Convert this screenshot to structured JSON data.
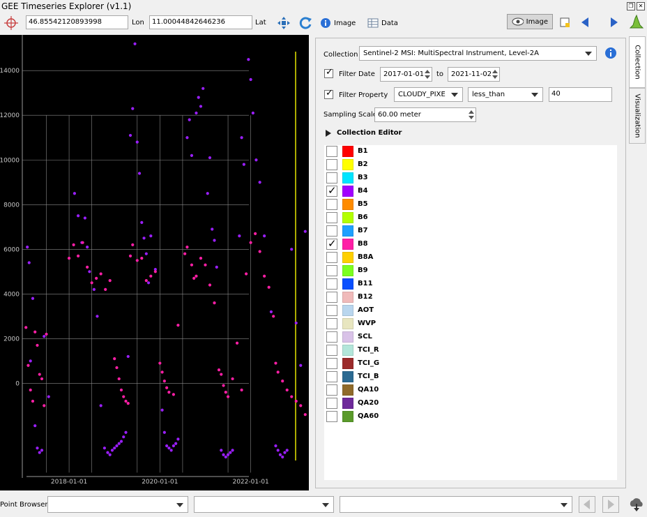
{
  "window": {
    "title": "GEE Timeseries Explorer (v1.1)"
  },
  "toolbar": {
    "lon_value": "46.85542120893998",
    "lon_label": "Lon",
    "lat_value": "11.00044842646236",
    "lat_label": "Lat",
    "image_label": "Image",
    "data_label": "Data",
    "view_image_label": "Image"
  },
  "panel": {
    "collection_label": "Collection",
    "collection_value": "Sentinel-2 MSI: MultiSpectral Instrument, Level-2A",
    "filter_date_label": "Filter Date",
    "date_from": "2017-01-01",
    "to_label": "to",
    "date_to": "2021-11-02",
    "filter_property_label": "Filter Property",
    "property_value": "CLOUDY_PIXE",
    "operator_value": "less_than",
    "threshold_value": "40",
    "sampling_scale_label": "Sampling Scale",
    "sampling_scale_value": "60.00 meter",
    "collection_editor_label": "Collection Editor"
  },
  "bands": [
    {
      "name": "B1",
      "color": "#ff0000",
      "checked": false
    },
    {
      "name": "B2",
      "color": "#ffff00",
      "checked": false
    },
    {
      "name": "B3",
      "color": "#00e5ff",
      "checked": false
    },
    {
      "name": "B4",
      "color": "#a100ff",
      "checked": true
    },
    {
      "name": "B5",
      "color": "#ff8c00",
      "checked": false
    },
    {
      "name": "B6",
      "color": "#b3ff00",
      "checked": false
    },
    {
      "name": "B7",
      "color": "#1fa0ff",
      "checked": false
    },
    {
      "name": "B8",
      "color": "#ff1fa6",
      "checked": true
    },
    {
      "name": "B8A",
      "color": "#ffd000",
      "checked": false
    },
    {
      "name": "B9",
      "color": "#7cff1f",
      "checked": false
    },
    {
      "name": "B11",
      "color": "#0a4fff",
      "checked": false
    },
    {
      "name": "B12",
      "color": "#f0baba",
      "checked": false
    },
    {
      "name": "AOT",
      "color": "#b9d6ee",
      "checked": false
    },
    {
      "name": "WVP",
      "color": "#e8e6c0",
      "checked": false
    },
    {
      "name": "SCL",
      "color": "#d9c2e8",
      "checked": false
    },
    {
      "name": "TCI_R",
      "color": "#b3e6da",
      "checked": false
    },
    {
      "name": "TCI_G",
      "color": "#9b2a2a",
      "checked": false
    },
    {
      "name": "TCI_B",
      "color": "#2b6a92",
      "checked": false
    },
    {
      "name": "QA10",
      "color": "#8f6a2a",
      "checked": false
    },
    {
      "name": "QA20",
      "color": "#6e2a9a",
      "checked": false
    },
    {
      "name": "QA60",
      "color": "#5a9a2a",
      "checked": false
    }
  ],
  "side_tabs": [
    "Collection",
    "Visualization"
  ],
  "bottom": {
    "point_browser_label": "Point Browser"
  },
  "chart_data": {
    "type": "scatter",
    "ylim": [
      -4800,
      15600
    ],
    "yticks": [
      "14000",
      "12000",
      "10000",
      "8000",
      "6000",
      "4000",
      "2000",
      "0"
    ],
    "ytick_values": [
      14000,
      12000,
      10000,
      8000,
      6000,
      4000,
      2000,
      0
    ],
    "xticks": [
      "2018-01-01",
      "2020-01-01",
      "2022-01-01"
    ],
    "xtick_values": [
      2018.0,
      2020.0,
      2022.0
    ],
    "xlim": [
      2016.97,
      2023.28
    ],
    "grid": true,
    "series": [
      {
        "name": "B4",
        "color": "#9b1fff",
        "points": [
          [
            2017.08,
            6100
          ],
          [
            2017.12,
            5400
          ],
          [
            2017.15,
            1000
          ],
          [
            2017.2,
            3800
          ],
          [
            2017.25,
            -1900
          ],
          [
            2017.3,
            -2900
          ],
          [
            2017.35,
            -3100
          ],
          [
            2017.4,
            -3000
          ],
          [
            2017.45,
            2100
          ],
          [
            2017.55,
            -600
          ],
          [
            2018.12,
            8500
          ],
          [
            2018.2,
            7500
          ],
          [
            2018.28,
            6300
          ],
          [
            2018.35,
            7400
          ],
          [
            2018.4,
            6100
          ],
          [
            2018.45,
            5000
          ],
          [
            2018.55,
            4200
          ],
          [
            2018.62,
            3000
          ],
          [
            2018.7,
            -1000
          ],
          [
            2018.78,
            -2900
          ],
          [
            2018.85,
            -3100
          ],
          [
            2018.9,
            -3200
          ],
          [
            2018.95,
            -3000
          ],
          [
            2019.0,
            -2900
          ],
          [
            2019.05,
            -2800
          ],
          [
            2019.1,
            -2700
          ],
          [
            2019.15,
            -2600
          ],
          [
            2019.2,
            -2400
          ],
          [
            2019.25,
            -2200
          ],
          [
            2019.3,
            1200
          ],
          [
            2019.35,
            11100
          ],
          [
            2019.4,
            12300
          ],
          [
            2019.45,
            15200
          ],
          [
            2019.5,
            10800
          ],
          [
            2019.55,
            9400
          ],
          [
            2019.6,
            7200
          ],
          [
            2019.65,
            6500
          ],
          [
            2019.7,
            5800
          ],
          [
            2019.75,
            4500
          ],
          [
            2019.8,
            6600
          ],
          [
            2019.9,
            5100
          ],
          [
            2020.05,
            -1200
          ],
          [
            2020.1,
            -2200
          ],
          [
            2020.15,
            -2800
          ],
          [
            2020.2,
            -2900
          ],
          [
            2020.25,
            -3000
          ],
          [
            2020.3,
            -2800
          ],
          [
            2020.35,
            -2700
          ],
          [
            2020.4,
            -2500
          ],
          [
            2020.6,
            11000
          ],
          [
            2020.65,
            11800
          ],
          [
            2020.7,
            10200
          ],
          [
            2020.8,
            12100
          ],
          [
            2020.85,
            12800
          ],
          [
            2020.9,
            12400
          ],
          [
            2020.95,
            13200
          ],
          [
            2021.05,
            8500
          ],
          [
            2021.1,
            10100
          ],
          [
            2021.15,
            6900
          ],
          [
            2021.2,
            6400
          ],
          [
            2021.25,
            5200
          ],
          [
            2021.35,
            -3000
          ],
          [
            2021.4,
            -3200
          ],
          [
            2021.45,
            -3300
          ],
          [
            2021.5,
            -3200
          ],
          [
            2021.55,
            -3100
          ],
          [
            2021.6,
            -3000
          ],
          [
            2021.75,
            6600
          ],
          [
            2021.8,
            11000
          ],
          [
            2021.85,
            9800
          ],
          [
            2021.95,
            14500
          ],
          [
            2022.0,
            13600
          ],
          [
            2022.05,
            12100
          ],
          [
            2022.12,
            10000
          ],
          [
            2022.2,
            9000
          ],
          [
            2022.3,
            6600
          ],
          [
            2022.45,
            3200
          ],
          [
            2022.55,
            -2800
          ],
          [
            2022.6,
            -3000
          ],
          [
            2022.65,
            -3200
          ],
          [
            2022.7,
            -3300
          ],
          [
            2022.75,
            -3100
          ],
          [
            2022.8,
            -3000
          ],
          [
            2022.9,
            6000
          ],
          [
            2023.0,
            2700
          ],
          [
            2023.1,
            800
          ],
          [
            2023.2,
            6800
          ]
        ]
      },
      {
        "name": "B8",
        "color": "#ff1fa6",
        "points": [
          [
            2017.05,
            2500
          ],
          [
            2017.1,
            800
          ],
          [
            2017.15,
            -300
          ],
          [
            2017.2,
            -800
          ],
          [
            2017.25,
            2300
          ],
          [
            2017.3,
            1700
          ],
          [
            2017.35,
            400
          ],
          [
            2017.4,
            200
          ],
          [
            2017.45,
            -1000
          ],
          [
            2017.5,
            2200
          ],
          [
            2018.0,
            5600
          ],
          [
            2018.1,
            6200
          ],
          [
            2018.2,
            5700
          ],
          [
            2018.3,
            6300
          ],
          [
            2018.4,
            5200
          ],
          [
            2018.5,
            4500
          ],
          [
            2018.6,
            4700
          ],
          [
            2018.7,
            4900
          ],
          [
            2018.8,
            4200
          ],
          [
            2018.9,
            4600
          ],
          [
            2019.0,
            1100
          ],
          [
            2019.05,
            700
          ],
          [
            2019.1,
            200
          ],
          [
            2019.15,
            -300
          ],
          [
            2019.2,
            -600
          ],
          [
            2019.25,
            -800
          ],
          [
            2019.3,
            -900
          ],
          [
            2019.35,
            5700
          ],
          [
            2019.4,
            6200
          ],
          [
            2019.5,
            5500
          ],
          [
            2019.6,
            5600
          ],
          [
            2019.7,
            4600
          ],
          [
            2019.8,
            4800
          ],
          [
            2019.9,
            5000
          ],
          [
            2020.0,
            900
          ],
          [
            2020.05,
            500
          ],
          [
            2020.1,
            100
          ],
          [
            2020.15,
            -200
          ],
          [
            2020.2,
            -400
          ],
          [
            2020.3,
            -500
          ],
          [
            2020.4,
            2600
          ],
          [
            2020.55,
            5800
          ],
          [
            2020.6,
            6100
          ],
          [
            2020.7,
            5300
          ],
          [
            2020.75,
            4700
          ],
          [
            2020.8,
            4800
          ],
          [
            2020.9,
            5600
          ],
          [
            2021.0,
            5300
          ],
          [
            2021.1,
            4400
          ],
          [
            2021.2,
            3600
          ],
          [
            2021.3,
            600
          ],
          [
            2021.35,
            400
          ],
          [
            2021.4,
            -100
          ],
          [
            2021.45,
            -400
          ],
          [
            2021.5,
            -600
          ],
          [
            2021.6,
            200
          ],
          [
            2021.7,
            1800
          ],
          [
            2021.8,
            -300
          ],
          [
            2021.9,
            4900
          ],
          [
            2022.0,
            6300
          ],
          [
            2022.1,
            6700
          ],
          [
            2022.2,
            5900
          ],
          [
            2022.3,
            4800
          ],
          [
            2022.4,
            4300
          ],
          [
            2022.5,
            3000
          ],
          [
            2022.55,
            900
          ],
          [
            2022.6,
            500
          ],
          [
            2022.7,
            100
          ],
          [
            2022.8,
            -300
          ],
          [
            2022.9,
            -600
          ],
          [
            2023.0,
            -800
          ],
          [
            2023.1,
            -1000
          ],
          [
            2023.2,
            -1400
          ]
        ]
      }
    ]
  }
}
